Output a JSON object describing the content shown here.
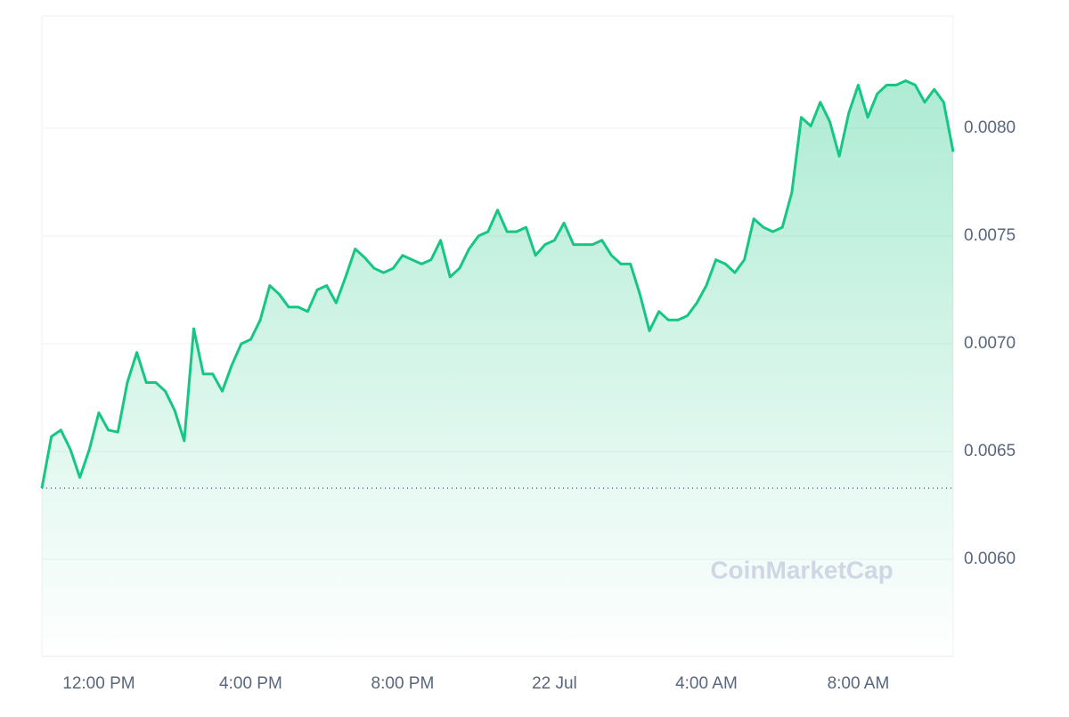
{
  "chart_data": {
    "type": "line",
    "watermark": "CoinMarketCap",
    "categories": [
      null,
      null,
      null,
      null,
      null,
      null,
      "12:00 PM",
      null,
      null,
      null,
      null,
      null,
      null,
      null,
      null,
      null,
      null,
      null,
      null,
      null,
      null,
      null,
      "4:00 PM",
      null,
      null,
      null,
      null,
      null,
      null,
      null,
      null,
      null,
      null,
      null,
      null,
      null,
      null,
      null,
      "8:00 PM",
      null,
      null,
      null,
      null,
      null,
      null,
      null,
      null,
      null,
      null,
      null,
      null,
      null,
      null,
      null,
      "22 Jul",
      null,
      null,
      null,
      null,
      null,
      null,
      null,
      null,
      null,
      null,
      null,
      null,
      null,
      null,
      null,
      "4:00 AM",
      null,
      null,
      null,
      null,
      null,
      null,
      null,
      null,
      null,
      null,
      null,
      null,
      null,
      null,
      null,
      "8:00 AM",
      null,
      null,
      null,
      null,
      null,
      null,
      null,
      null,
      null,
      null
    ],
    "series": [
      {
        "color": "#16c784",
        "values": [
          0.00633,
          0.00657,
          0.0066,
          0.00651,
          0.00638,
          0.00651,
          0.00668,
          0.0066,
          0.00659,
          0.00682,
          0.00696,
          0.00682,
          0.00682,
          0.00678,
          0.00669,
          0.00655,
          0.00707,
          0.00686,
          0.00686,
          0.00678,
          0.0069,
          0.007,
          0.00702,
          0.00711,
          0.00727,
          0.00723,
          0.00717,
          0.00717,
          0.00715,
          0.00725,
          0.00727,
          0.00719,
          0.00731,
          0.00744,
          0.0074,
          0.00735,
          0.00733,
          0.00735,
          0.00741,
          0.00739,
          0.00737,
          0.00739,
          0.00748,
          0.00731,
          0.00735,
          0.00744,
          0.0075,
          0.00752,
          0.00762,
          0.00752,
          0.00752,
          0.00754,
          0.00741,
          0.00746,
          0.00748,
          0.00756,
          0.00746,
          0.00746,
          0.00746,
          0.00748,
          0.00741,
          0.00737,
          0.00737,
          0.00723,
          0.00706,
          0.00715,
          0.00711,
          0.00711,
          0.00713,
          0.00719,
          0.00727,
          0.00739,
          0.00737,
          0.00733,
          0.00739,
          0.00758,
          0.00754,
          0.00752,
          0.00754,
          0.0077,
          0.00805,
          0.00801,
          0.00812,
          0.00803,
          0.00787,
          0.00807,
          0.0082,
          0.00805,
          0.00816,
          0.0082,
          0.0082,
          0.00822,
          0.0082,
          0.00812,
          0.00818,
          0.00812,
          0.00789
        ]
      }
    ],
    "baseline": 0.00633,
    "ylim": [
      0.00555,
      0.00852
    ],
    "yticks": [
      {
        "value": 0.006,
        "label": "0.0060"
      },
      {
        "value": 0.0065,
        "label": "0.0065"
      },
      {
        "value": 0.007,
        "label": "0.0070"
      },
      {
        "value": 0.0075,
        "label": "0.0075"
      },
      {
        "value": 0.008,
        "label": "0.0080"
      }
    ],
    "grid": true
  }
}
